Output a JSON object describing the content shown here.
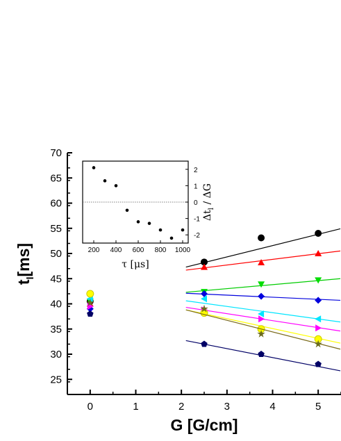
{
  "chart_data": [
    {
      "type": "scatter",
      "xlabel": "G [G/cm]",
      "ylabel": "t",
      "ylabel_sub": "l",
      "ylabel_unit": "[ms]",
      "xlim": [
        -0.5,
        5.5
      ],
      "ylim": [
        22,
        70
      ],
      "xticks": [
        0,
        1,
        2,
        3,
        4,
        5
      ],
      "yticks": [
        25,
        30,
        35,
        40,
        45,
        50,
        55,
        60,
        65,
        70
      ],
      "series": [
        {
          "marker": "circle",
          "color": "#000000",
          "fit_color": "#000000",
          "points": [
            [
              0,
              40.5
            ],
            [
              2.5,
              48.3
            ],
            [
              3.75,
              53.1
            ],
            [
              5,
              54.0
            ]
          ],
          "fit": [
            [
              2.1,
              47.3
            ],
            [
              5.5,
              54.9
            ]
          ]
        },
        {
          "marker": "triangle-up",
          "color": "#ff0000",
          "fit_color": "#ff0000",
          "points": [
            [
              0,
              40.0
            ],
            [
              2.5,
              47.3
            ],
            [
              3.75,
              48.2
            ],
            [
              5,
              50.0
            ]
          ],
          "fit": [
            [
              2.1,
              46.7
            ],
            [
              5.5,
              50.5
            ]
          ]
        },
        {
          "marker": "triangle-down",
          "color": "#00dd00",
          "fit_color": "#00cc00",
          "points": [
            [
              0,
              40.5
            ],
            [
              2.5,
              42.4
            ],
            [
              3.75,
              43.9
            ],
            [
              5,
              44.7
            ]
          ],
          "fit": [
            [
              2.1,
              42.3
            ],
            [
              5.5,
              45.0
            ]
          ]
        },
        {
          "marker": "diamond",
          "color": "#0000dd",
          "fit_color": "#0000dd",
          "points": [
            [
              0,
              39.0
            ],
            [
              2.5,
              42.0
            ],
            [
              3.75,
              41.5
            ],
            [
              5,
              40.7
            ]
          ],
          "fit": [
            [
              2.1,
              42.1
            ],
            [
              5.5,
              40.7
            ]
          ]
        },
        {
          "marker": "triangle-left",
          "color": "#00e5ff",
          "fit_color": "#00e5ff",
          "points": [
            [
              0,
              41.0
            ],
            [
              2.5,
              41.0
            ],
            [
              3.75,
              38.0
            ],
            [
              5,
              37.0
            ]
          ],
          "fit": [
            [
              2.1,
              40.6
            ],
            [
              5.5,
              36.4
            ]
          ]
        },
        {
          "marker": "triangle-right",
          "color": "#ff00ff",
          "fit_color": "#ff00ff",
          "points": [
            [
              0,
              39.5
            ],
            [
              2.5,
              38.8
            ],
            [
              3.75,
              37.0
            ],
            [
              5,
              35.2
            ]
          ],
          "fit": [
            [
              2.1,
              39.3
            ],
            [
              5.5,
              34.6
            ]
          ]
        },
        {
          "marker": "circle",
          "color": "#ffff00",
          "fit_color": "#ffff00",
          "points": [
            [
              0,
              42.0
            ],
            [
              2.5,
              38.2
            ],
            [
              3.75,
              35.0
            ],
            [
              5,
              33.0
            ]
          ],
          "fit": [
            [
              2.1,
              38.8
            ],
            [
              5.5,
              32.2
            ]
          ]
        },
        {
          "marker": "star",
          "color": "#6b6b1e",
          "fit_color": "#7a6a1a",
          "points": [
            [
              0,
              40.2
            ],
            [
              2.5,
              39.0
            ],
            [
              3.75,
              34.0
            ],
            [
              5,
              32.0
            ]
          ],
          "fit": [
            [
              2.1,
              38.8
            ],
            [
              5.5,
              31.0
            ]
          ]
        },
        {
          "marker": "pentagon",
          "color": "#000066",
          "fit_color": "#000066",
          "points": [
            [
              0,
              38.0
            ],
            [
              2.5,
              32.0
            ],
            [
              3.75,
              30.0
            ],
            [
              5,
              28.0
            ]
          ],
          "fit": [
            [
              2.1,
              32.7
            ],
            [
              5.5,
              26.7
            ]
          ]
        }
      ]
    },
    {
      "type": "scatter",
      "xlabel": "τ [μs]",
      "ylabel": "Δt",
      "ylabel_sub": "l",
      "ylabel_rest": " / ΔG",
      "xlim": [
        100,
        1050
      ],
      "ylim": [
        -2.5,
        2.5
      ],
      "xticks": [
        200,
        400,
        600,
        800,
        1000
      ],
      "yticks": [
        -2,
        -1,
        0,
        1,
        2
      ],
      "reference_line": 0,
      "points": [
        [
          200,
          2.1
        ],
        [
          300,
          1.3
        ],
        [
          400,
          1.0
        ],
        [
          500,
          -0.5
        ],
        [
          600,
          -1.2
        ],
        [
          700,
          -1.3
        ],
        [
          800,
          -1.7
        ],
        [
          900,
          -2.2
        ],
        [
          1000,
          -1.7
        ]
      ]
    }
  ]
}
